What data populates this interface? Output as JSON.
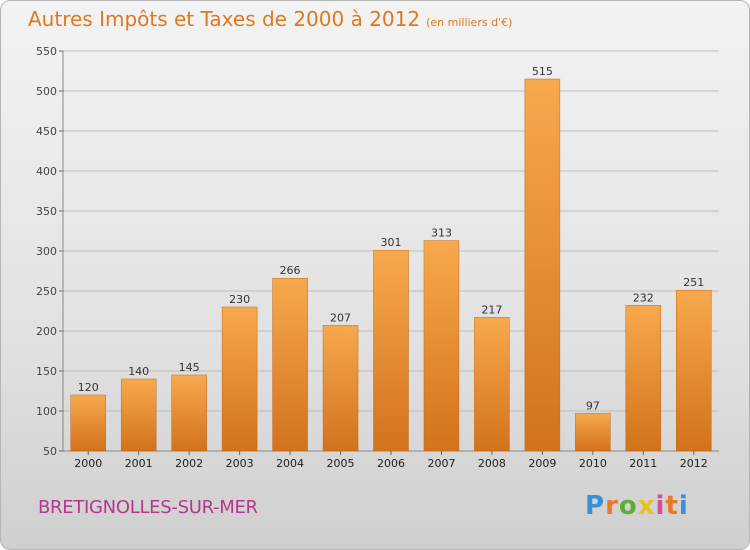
{
  "title": "Autres Impôts et Taxes de 2000 à 2012",
  "subtitle": "(en milliers d'€)",
  "commune": "BRETIGNOLLES-SUR-MER",
  "logo": {
    "letters": [
      "P",
      "r",
      "o",
      "x",
      "i",
      "t",
      "i"
    ],
    "colors": [
      "#3a8fd6",
      "#e8792b",
      "#5bb12f",
      "#e8c21b",
      "#d94c9a",
      "#e8792b",
      "#3a8fd6"
    ]
  },
  "colors": {
    "bar_top": "#f7a94e",
    "bar_bottom": "#d2721c",
    "title": "#e0781d",
    "commune": "#b5378a"
  },
  "chart_data": {
    "type": "bar",
    "categories": [
      "2000",
      "2001",
      "2002",
      "2003",
      "2004",
      "2005",
      "2006",
      "2007",
      "2008",
      "2009",
      "2010",
      "2011",
      "2012"
    ],
    "values": [
      120,
      140,
      145,
      230,
      266,
      207,
      301,
      313,
      217,
      515,
      97,
      232,
      251
    ],
    "data_labels": [
      "120",
      "140",
      "145",
      "230",
      "266",
      "207",
      "301",
      "313",
      "217",
      "515",
      "97",
      "232",
      "251"
    ],
    "yticks": [
      "50",
      "100",
      "150",
      "200",
      "250",
      "300",
      "350",
      "400",
      "450",
      "500",
      "550"
    ],
    "ylim": [
      50,
      550
    ],
    "grid": true,
    "xlabel": "",
    "ylabel": ""
  }
}
